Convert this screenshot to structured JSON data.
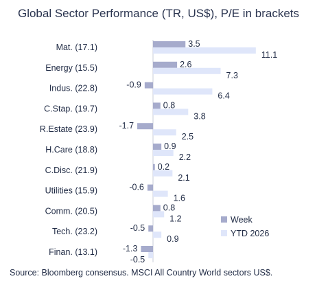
{
  "chart_data": {
    "type": "bar",
    "orientation": "horizontal",
    "title": "Global Sector Performance (TR, US$), P/E in brackets",
    "categories": [
      "Mat. (17.1)",
      "Energy (15.5)",
      "Indus. (22.8)",
      "C.Stap. (19.7)",
      "R.Estate (23.9)",
      "H.Care (18.8)",
      "C.Disc. (21.9)",
      "Utilities (15.9)",
      "Comm. (20.5)",
      "Tech. (23.2)",
      "Finan. (13.1)"
    ],
    "series": [
      {
        "name": "Week",
        "color": "#a6abcc",
        "values": [
          3.5,
          2.6,
          -0.9,
          0.8,
          -1.7,
          0.9,
          0.2,
          -0.6,
          0.8,
          -0.5,
          -1.3
        ]
      },
      {
        "name": "YTD 2026",
        "color": "#dfe6fa",
        "values": [
          11.1,
          7.3,
          6.4,
          3.8,
          2.5,
          2.2,
          2.1,
          1.6,
          1.2,
          0.9,
          -0.5
        ]
      }
    ],
    "xlim": [
      -2,
      12
    ],
    "legend_position": "bottom-right",
    "grid": false
  },
  "source": "Source: Bloomberg consensus. MSCI All Country World sectors US$."
}
